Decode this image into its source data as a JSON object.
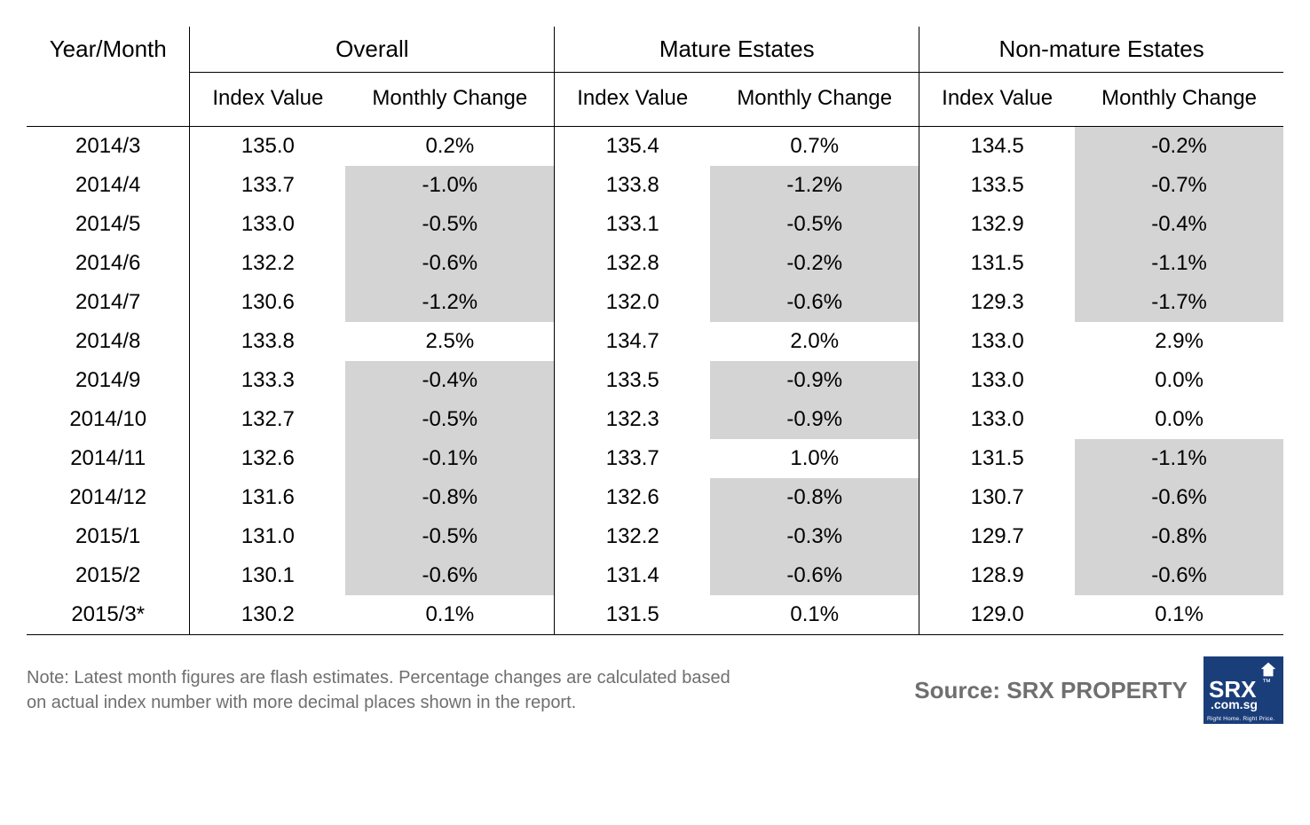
{
  "table": {
    "type": "table",
    "background_color": "#ffffff",
    "text_color": "#000000",
    "negative_cell_color": "#d4d4d4",
    "border_color": "#000000",
    "font_size_header_group": 26,
    "font_size_header_sub": 24,
    "font_size_body": 24,
    "header_groups": [
      "Year/Month",
      "Overall",
      "Mature Estates",
      "Non-mature Estates"
    ],
    "sub_headers": [
      "Index Value",
      "Monthly Change"
    ],
    "rows": [
      {
        "ym": "2014/3",
        "overall": {
          "iv": "135.0",
          "mc": "0.2%",
          "neg": false
        },
        "mature": {
          "iv": "135.4",
          "mc": "0.7%",
          "neg": false
        },
        "nonmature": {
          "iv": "134.5",
          "mc": "-0.2%",
          "neg": true
        }
      },
      {
        "ym": "2014/4",
        "overall": {
          "iv": "133.7",
          "mc": "-1.0%",
          "neg": true
        },
        "mature": {
          "iv": "133.8",
          "mc": "-1.2%",
          "neg": true
        },
        "nonmature": {
          "iv": "133.5",
          "mc": "-0.7%",
          "neg": true
        }
      },
      {
        "ym": "2014/5",
        "overall": {
          "iv": "133.0",
          "mc": "-0.5%",
          "neg": true
        },
        "mature": {
          "iv": "133.1",
          "mc": "-0.5%",
          "neg": true
        },
        "nonmature": {
          "iv": "132.9",
          "mc": "-0.4%",
          "neg": true
        }
      },
      {
        "ym": "2014/6",
        "overall": {
          "iv": "132.2",
          "mc": "-0.6%",
          "neg": true
        },
        "mature": {
          "iv": "132.8",
          "mc": "-0.2%",
          "neg": true
        },
        "nonmature": {
          "iv": "131.5",
          "mc": "-1.1%",
          "neg": true
        }
      },
      {
        "ym": "2014/7",
        "overall": {
          "iv": "130.6",
          "mc": "-1.2%",
          "neg": true
        },
        "mature": {
          "iv": "132.0",
          "mc": "-0.6%",
          "neg": true
        },
        "nonmature": {
          "iv": "129.3",
          "mc": "-1.7%",
          "neg": true
        }
      },
      {
        "ym": "2014/8",
        "overall": {
          "iv": "133.8",
          "mc": "2.5%",
          "neg": false
        },
        "mature": {
          "iv": "134.7",
          "mc": "2.0%",
          "neg": false
        },
        "nonmature": {
          "iv": "133.0",
          "mc": "2.9%",
          "neg": false
        }
      },
      {
        "ym": "2014/9",
        "overall": {
          "iv": "133.3",
          "mc": "-0.4%",
          "neg": true
        },
        "mature": {
          "iv": "133.5",
          "mc": "-0.9%",
          "neg": true
        },
        "nonmature": {
          "iv": "133.0",
          "mc": "0.0%",
          "neg": false
        }
      },
      {
        "ym": "2014/10",
        "overall": {
          "iv": "132.7",
          "mc": "-0.5%",
          "neg": true
        },
        "mature": {
          "iv": "132.3",
          "mc": "-0.9%",
          "neg": true
        },
        "nonmature": {
          "iv": "133.0",
          "mc": "0.0%",
          "neg": false
        }
      },
      {
        "ym": "2014/11",
        "overall": {
          "iv": "132.6",
          "mc": "-0.1%",
          "neg": true
        },
        "mature": {
          "iv": "133.7",
          "mc": "1.0%",
          "neg": false
        },
        "nonmature": {
          "iv": "131.5",
          "mc": "-1.1%",
          "neg": true
        }
      },
      {
        "ym": "2014/12",
        "overall": {
          "iv": "131.6",
          "mc": "-0.8%",
          "neg": true
        },
        "mature": {
          "iv": "132.6",
          "mc": "-0.8%",
          "neg": true
        },
        "nonmature": {
          "iv": "130.7",
          "mc": "-0.6%",
          "neg": true
        }
      },
      {
        "ym": "2015/1",
        "overall": {
          "iv": "131.0",
          "mc": "-0.5%",
          "neg": true
        },
        "mature": {
          "iv": "132.2",
          "mc": "-0.3%",
          "neg": true
        },
        "nonmature": {
          "iv": "129.7",
          "mc": "-0.8%",
          "neg": true
        }
      },
      {
        "ym": "2015/2",
        "overall": {
          "iv": "130.1",
          "mc": "-0.6%",
          "neg": true
        },
        "mature": {
          "iv": "131.4",
          "mc": "-0.6%",
          "neg": true
        },
        "nonmature": {
          "iv": "128.9",
          "mc": "-0.6%",
          "neg": true
        }
      },
      {
        "ym": "2015/3*",
        "overall": {
          "iv": "130.2",
          "mc": "0.1%",
          "neg": false
        },
        "mature": {
          "iv": "131.5",
          "mc": "0.1%",
          "neg": false
        },
        "nonmature": {
          "iv": "129.0",
          "mc": "0.1%",
          "neg": false
        }
      }
    ]
  },
  "footer": {
    "note": "Note: Latest month figures are flash estimates. Percentage changes are calculated based on actual index number with more decimal places shown in the report.",
    "note_color": "#6f6f6f",
    "note_fontsize": 20,
    "source_label": "Source:  SRX PROPERTY",
    "source_color": "#6f6f6f",
    "source_fontsize": 26,
    "logo": {
      "bg_color": "#1a3e7a",
      "text_color": "#ffffff",
      "brand": "SRX",
      "trademark": "™",
      "domain": ".com.sg",
      "tagline": "Right Home. Right Price."
    }
  }
}
